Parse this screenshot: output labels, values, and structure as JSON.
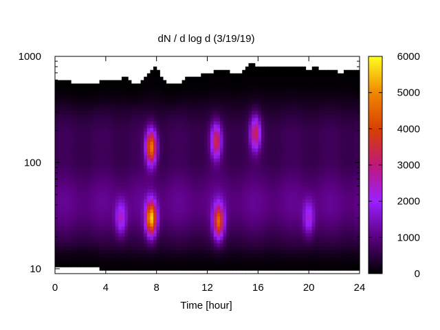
{
  "chart_data": {
    "type": "heatmap",
    "title": "dN / d log d (3/19/19)",
    "xlabel": "Time [hour]",
    "ylabel": "",
    "xlim": [
      0,
      24
    ],
    "ylim": [
      9,
      1000
    ],
    "y_scale": "log",
    "x_ticks": [
      0,
      4,
      8,
      12,
      16,
      20,
      24
    ],
    "y_ticks": [
      10,
      100,
      1000
    ],
    "y_tick_labels": [
      "10",
      "100",
      "1000"
    ],
    "colorbar": {
      "range": [
        0,
        6000
      ],
      "ticks": [
        0,
        1000,
        2000,
        3000,
        4000,
        5000,
        6000
      ],
      "colors": [
        "#000000",
        "#5a0080",
        "#9a20ff",
        "#c0187a",
        "#d84000",
        "#f08800",
        "#ffff20"
      ]
    },
    "missing_data_color": "#ffffff",
    "top_boundary": {
      "time": [
        0,
        1,
        1.5,
        2,
        3,
        3.5,
        4,
        5,
        5.5,
        6,
        6.5,
        7,
        7.5,
        7.8,
        8,
        8.5,
        9,
        10,
        10.5,
        11,
        12,
        12.5,
        13,
        14,
        14.5,
        15,
        15.5,
        16,
        17,
        18,
        19,
        20,
        20.5,
        21,
        22,
        22.5,
        23,
        24
      ],
      "diameter": [
        620,
        600,
        560,
        540,
        540,
        580,
        580,
        600,
        640,
        560,
        560,
        620,
        720,
        800,
        760,
        600,
        540,
        580,
        680,
        620,
        700,
        720,
        760,
        700,
        700,
        760,
        860,
        800,
        800,
        800,
        800,
        760,
        780,
        760,
        740,
        700,
        740,
        720
      ]
    },
    "blobs": [
      {
        "time": 7.6,
        "diameter": 30,
        "peak": 5200
      },
      {
        "time": 7.6,
        "diameter": 140,
        "peak": 4600
      },
      {
        "time": 12.9,
        "diameter": 28,
        "peak": 3600
      },
      {
        "time": 12.7,
        "diameter": 160,
        "peak": 2800
      },
      {
        "time": 15.8,
        "diameter": 190,
        "peak": 2600
      },
      {
        "time": 5.2,
        "diameter": 30,
        "peak": 1900
      },
      {
        "time": 20.0,
        "diameter": 30,
        "peak": 1700
      }
    ]
  }
}
